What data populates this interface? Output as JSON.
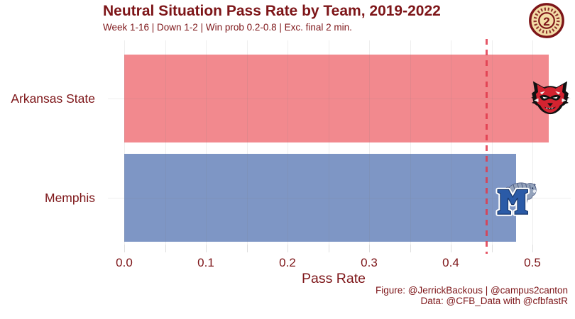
{
  "header": {
    "title": "Neutral Situation Pass Rate by Team, 2019-2022",
    "subtitle": "Week 1-16 | Down 1-2 | Win prob 0.2-0.8 | Exc. final 2 min."
  },
  "chart_data": {
    "type": "bar",
    "orientation": "horizontal",
    "title": "Neutral Situation Pass Rate by Team, 2019-2022",
    "subtitle": "Week 1-16 | Down 1-2 | Win prob 0.2-0.8 | Exc. final 2 min.",
    "categories": [
      "Arkansas State",
      "Memphis"
    ],
    "values": [
      0.52,
      0.48
    ],
    "bar_colors": [
      "#F2898E",
      "#7E96C5"
    ],
    "reference_line": {
      "value": 0.444,
      "style": "dashed",
      "color": "#E0394B"
    },
    "xlabel": "Pass Rate",
    "x_ticks": [
      0.0,
      0.1,
      0.2,
      0.3,
      0.4,
      0.5
    ],
    "x_tick_labels": [
      "0.0",
      "0.1",
      "0.2",
      "0.3",
      "0.4",
      "0.5"
    ],
    "xlim": [
      0,
      0.547
    ],
    "minor_grid_step": 0.05,
    "grid": true,
    "legend": "none",
    "bar_end_logos": [
      "arkansas-state-red-wolf",
      "memphis-tigers-m"
    ]
  },
  "footer": {
    "caption_line1": "Figure: @JerrickBackous | @campus2canton",
    "caption_line2": "Data: @CFB_Data with @cfbfastR"
  },
  "colors": {
    "text_maroon": "#7D1518",
    "bar_red": "#F2898E",
    "bar_blue": "#7E96C5",
    "reference_line_red": "#E0394B",
    "gridline_gray": "#E2E2E2",
    "background": "#FFFFFF",
    "coin_gold": "#F3DCA6",
    "wolf_red": "#D32330",
    "memphis_blue": "#2B5BA7"
  },
  "icons": {
    "coin": "campus2canton-coin",
    "coin_number": "2",
    "arkansas_state": "red-wolf-head",
    "memphis": "tiger-over-m"
  }
}
